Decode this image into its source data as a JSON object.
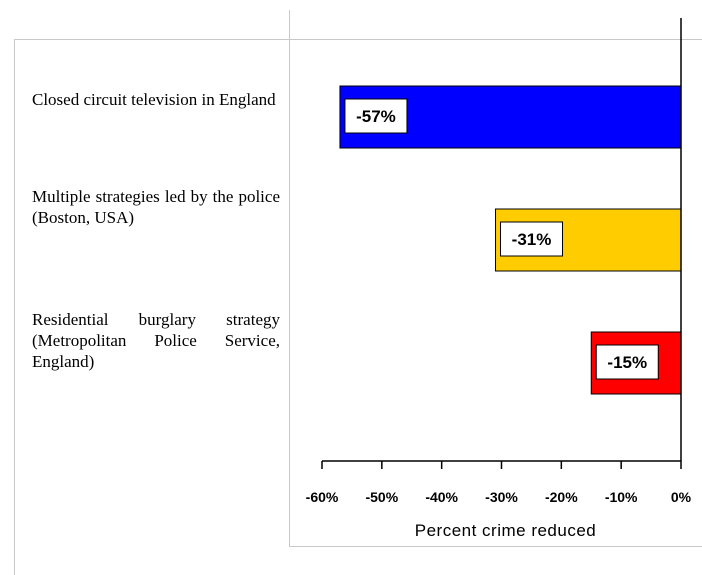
{
  "chart_data": {
    "type": "bar",
    "orientation": "horizontal",
    "categories": [
      "Closed circuit television in England",
      "Multiple strategies led by the police (Boston, USA)",
      "Residential burglary strategy (Metropolitan Police Service, England)"
    ],
    "values": [
      -57,
      -31,
      -15
    ],
    "data_labels": [
      "-57%",
      "-31%",
      "-15%"
    ],
    "bar_colors": [
      "#0000ff",
      "#ffcc00",
      "#ff0000"
    ],
    "xlabel": "Percent crime reduced",
    "xlim": [
      -60,
      0
    ],
    "xticks": [
      -60,
      -50,
      -40,
      -30,
      -20,
      -10,
      0
    ],
    "xtick_labels": [
      "-60%",
      "-50%",
      "-40%",
      "-30%",
      "-20%",
      "-10%",
      "0%"
    ],
    "grid": false,
    "legend": "none"
  }
}
